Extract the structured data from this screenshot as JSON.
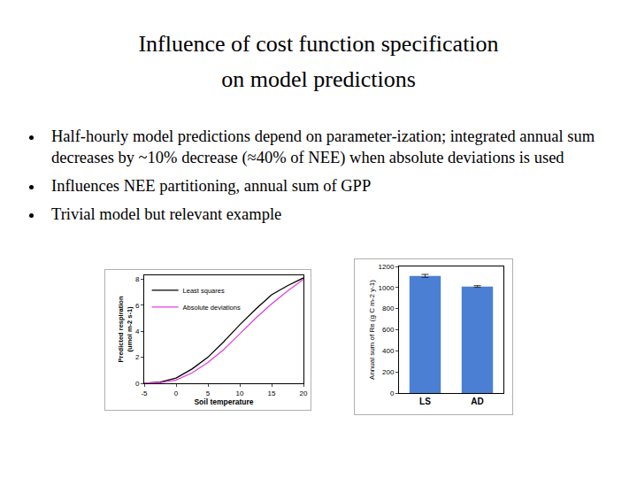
{
  "slide": {
    "title": [
      "Influence of cost function specification",
      "on model predictions"
    ],
    "bullets": [
      "Half-hourly model predictions depend on parameter-ization; integrated annual sum decreases by ~10% decrease (≈40% of NEE) when absolute deviations is used",
      "Influences NEE partitioning, annual sum of GPP",
      "Trivial model but relevant example"
    ]
  },
  "chart_data": [
    {
      "type": "line",
      "x_label": "Soil temperature",
      "y_label": [
        "Predicted respiration",
        "(umol m-2 s-1)"
      ],
      "x": [
        -5,
        -2.5,
        0,
        2.5,
        5,
        7.5,
        10,
        12.5,
        15,
        17.5,
        20
      ],
      "series": [
        {
          "name": "Least squares",
          "color": "#000000",
          "values": [
            0.0,
            0.1,
            0.4,
            1.1,
            2.0,
            3.2,
            4.5,
            5.7,
            6.8,
            7.5,
            8.1
          ]
        },
        {
          "name": "Absolute deviations",
          "color": "#e040e0",
          "values": [
            0.0,
            0.05,
            0.25,
            0.8,
            1.6,
            2.6,
            3.8,
            5.0,
            6.1,
            7.1,
            8.0
          ]
        }
      ],
      "xlim": [
        -5,
        20
      ],
      "xticks": [
        -5,
        0,
        5,
        10,
        15,
        20
      ],
      "ylim": [
        0,
        8.3
      ],
      "yticks": [
        0,
        2,
        4,
        6,
        8
      ],
      "grid": false,
      "legend": "upper left"
    },
    {
      "type": "bar",
      "y_label": "Annual sum of Re (g C m-2 y-1)",
      "categories": [
        "LS",
        "AD"
      ],
      "values": [
        1110,
        1010
      ],
      "errors": [
        15,
        8
      ],
      "color": "#4a7fd4",
      "ylim": [
        0,
        1200
      ],
      "yticks": [
        0,
        200,
        400,
        600,
        800,
        1000,
        1200
      ],
      "grid": false
    }
  ]
}
